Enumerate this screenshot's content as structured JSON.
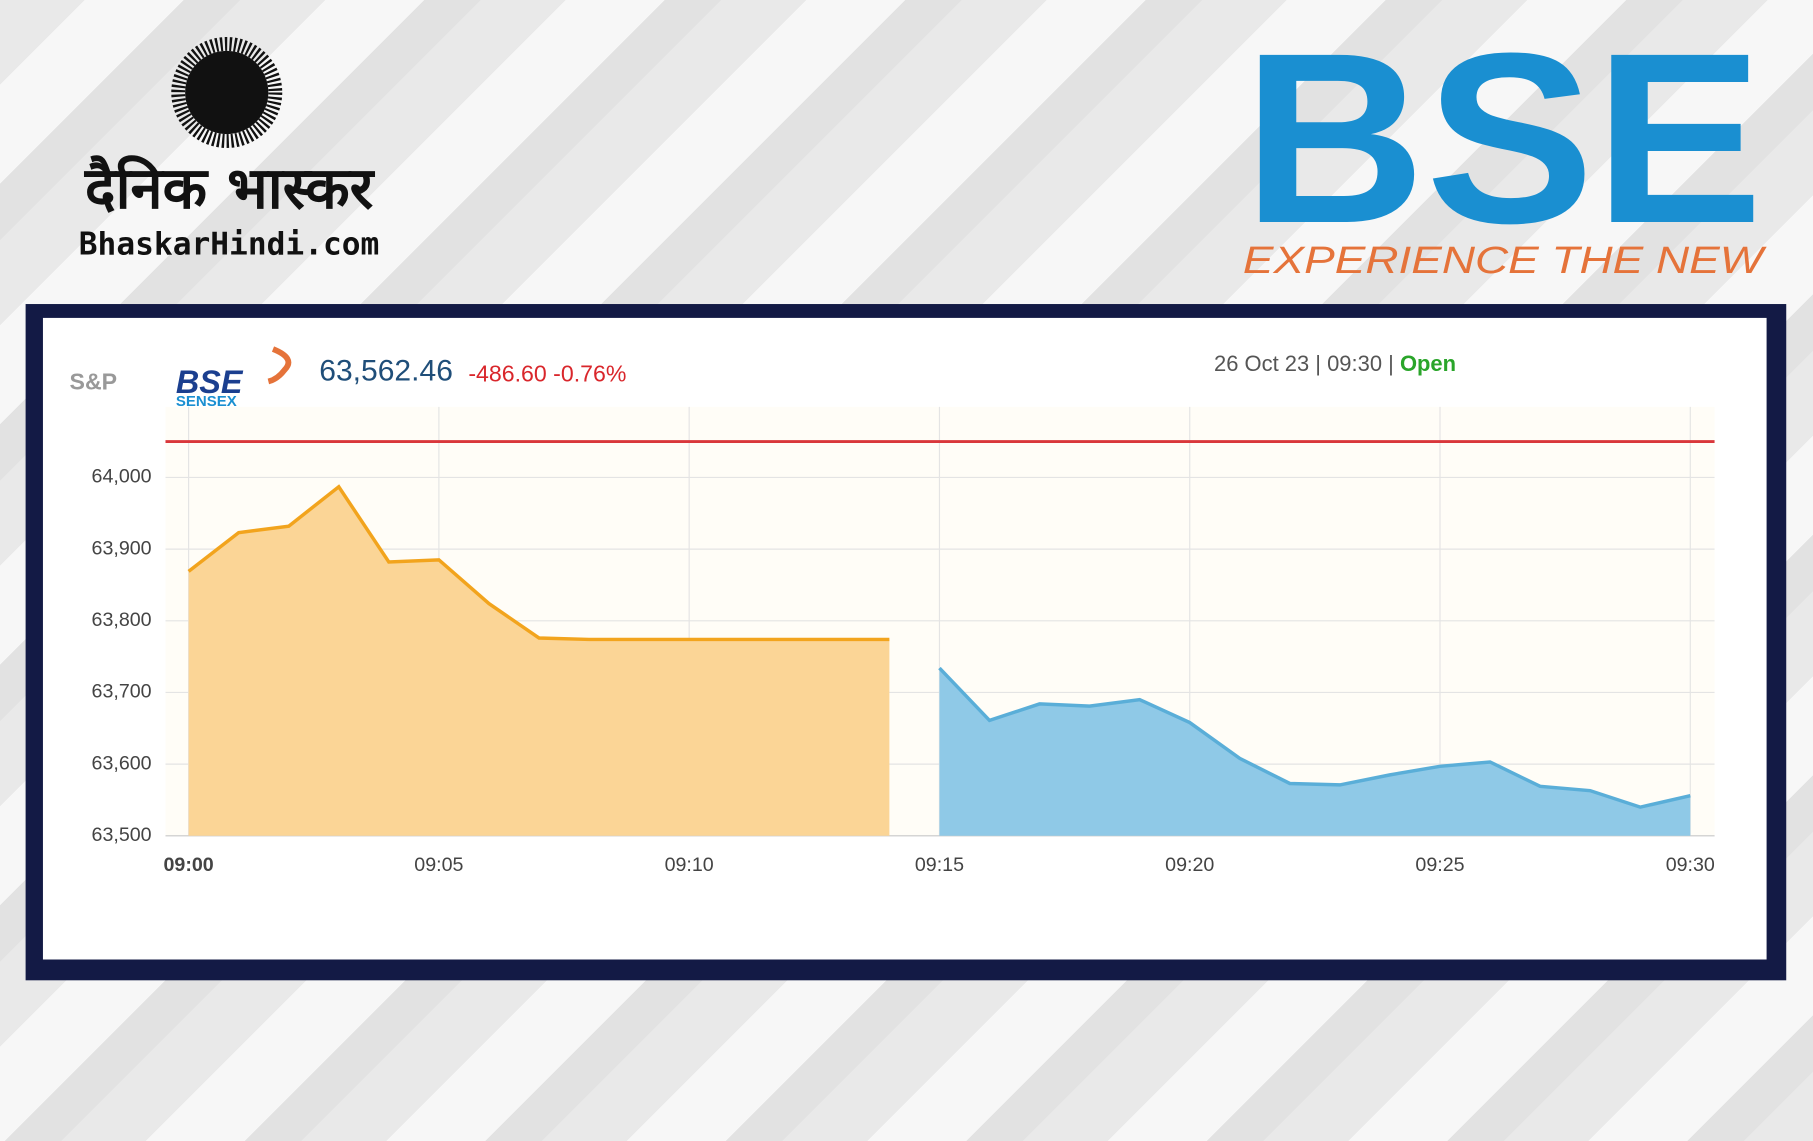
{
  "branding": {
    "left_logo": "दैनिक भास्कर",
    "left_site": "BhaskarHindi.com",
    "right_logo": "BSE",
    "right_tagline": "EXPERIENCE THE NEW"
  },
  "ticker": {
    "brand_prefix": "S&P",
    "brand": "BSE",
    "index_name": "SENSEX",
    "price": "63,562.46",
    "change": "-486.60",
    "change_percent": "-0.76%",
    "timestamp": "26 Oct 23 | 09:30 |",
    "status": "Open"
  },
  "chart_data": {
    "type": "area",
    "categories": [
      "09:00",
      null,
      null,
      null,
      null,
      "09:05",
      null,
      null,
      null,
      null,
      "09:10",
      null,
      null,
      null,
      null,
      "09:15",
      null,
      null,
      null,
      null,
      "09:20",
      null,
      null,
      null,
      null,
      "09:25",
      null,
      null,
      null,
      null,
      "09:30"
    ],
    "series": [
      {
        "color": "#f2a41d",
        "fill": "#fbd596",
        "values": [
          63869,
          63923,
          63932,
          63987,
          63882,
          63885,
          63824,
          63776,
          63774,
          63774,
          63774,
          63774,
          63774,
          63774,
          63774,
          null,
          null,
          null,
          null,
          null,
          null,
          null,
          null,
          null,
          null,
          null,
          null,
          null,
          null,
          null,
          null
        ]
      },
      {
        "color": "#5aaed8",
        "fill": "#8fc9e7",
        "values": [
          null,
          null,
          null,
          null,
          null,
          null,
          null,
          null,
          null,
          null,
          null,
          null,
          null,
          null,
          null,
          63734,
          63661,
          63684,
          63681,
          63690,
          63658,
          63608,
          63573,
          63571,
          63585,
          63597,
          63603,
          63569,
          63563,
          63540,
          63556
        ]
      }
    ],
    "reference_line": 64050,
    "reference_color": "#d9373b",
    "ylim": [
      63500,
      64100
    ],
    "yticks": [
      {
        "value": 63500,
        "label": "63,500"
      },
      {
        "value": 63600,
        "label": "63,600"
      },
      {
        "value": 63700,
        "label": "63,700"
      },
      {
        "value": 63800,
        "label": "63,800"
      },
      {
        "value": 63900,
        "label": "63,900"
      },
      {
        "value": 64000,
        "label": "64,000"
      }
    ],
    "grid": true
  }
}
